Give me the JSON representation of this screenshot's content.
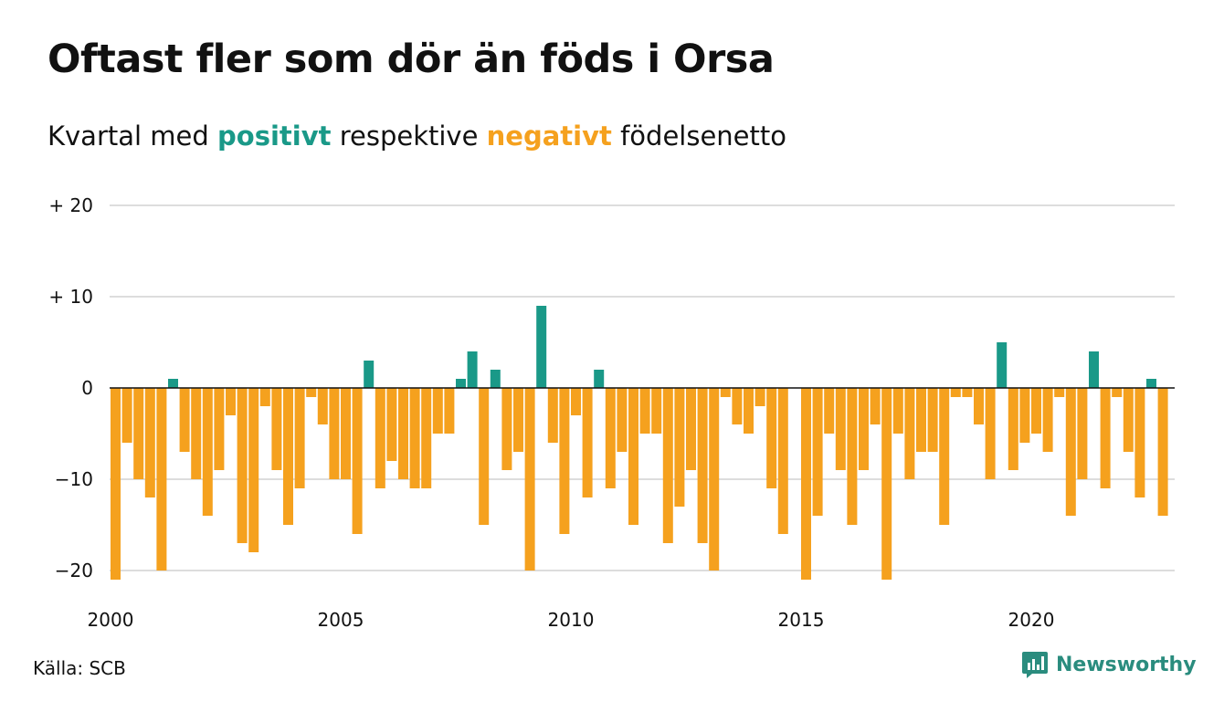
{
  "title": "Oftast fler som dör än föds i Orsa",
  "subtitle": {
    "prefix": "Kvartal med",
    "positive_word": "positivt",
    "middle": "respektive",
    "negative_word": "negativt",
    "suffix": "födelsenetto"
  },
  "source": "Källa: SCB",
  "brand": {
    "name": "Newsworthy",
    "icon": "newsworthy-logo-icon"
  },
  "colors": {
    "positive": "#1a9988",
    "negative": "#f5a11e",
    "grid": "#dddddd",
    "zero_line": "#111111"
  },
  "chart_data": {
    "type": "bar",
    "title": "Oftast fler som dör än föds i Orsa",
    "subtitle": "Kvartal med positivt respektive negativt födelsenetto",
    "x_start_year": 2000,
    "x_tick_years": [
      2000,
      2005,
      2010,
      2015,
      2020
    ],
    "x_tick_labels": [
      "2000",
      "2005",
      "2010",
      "2015",
      "2020"
    ],
    "y_ticks": [
      20,
      10,
      0,
      -10,
      -20
    ],
    "y_tick_labels": [
      "+ 20",
      "+ 10",
      "0",
      "−10",
      "−20"
    ],
    "ylim": [
      -21,
      20
    ],
    "grid": true,
    "values": [
      -21,
      -6,
      -10,
      -12,
      -20,
      1,
      -7,
      -10,
      -14,
      -9,
      -3,
      -17,
      -18,
      -2,
      -9,
      -15,
      -11,
      -1,
      -4,
      -10,
      -10,
      -16,
      3,
      -11,
      -8,
      -10,
      -11,
      -11,
      -5,
      -5,
      1,
      4,
      -15,
      2,
      -9,
      -7,
      -20,
      9,
      -6,
      -16,
      -3,
      -12,
      2,
      -11,
      -7,
      -15,
      -5,
      -5,
      -17,
      -13,
      -9,
      -17,
      -20,
      -1,
      -4,
      -5,
      -2,
      -11,
      -16,
      0,
      -21,
      -14,
      -5,
      -9,
      -15,
      -9,
      -4,
      -21,
      -5,
      -10,
      -7,
      -7,
      -15,
      -1,
      -1,
      -4,
      -10,
      5,
      -9,
      -6,
      -5,
      -7,
      -1,
      -14,
      -10,
      4,
      -11,
      -1,
      -7,
      -12,
      1,
      -14
    ]
  }
}
